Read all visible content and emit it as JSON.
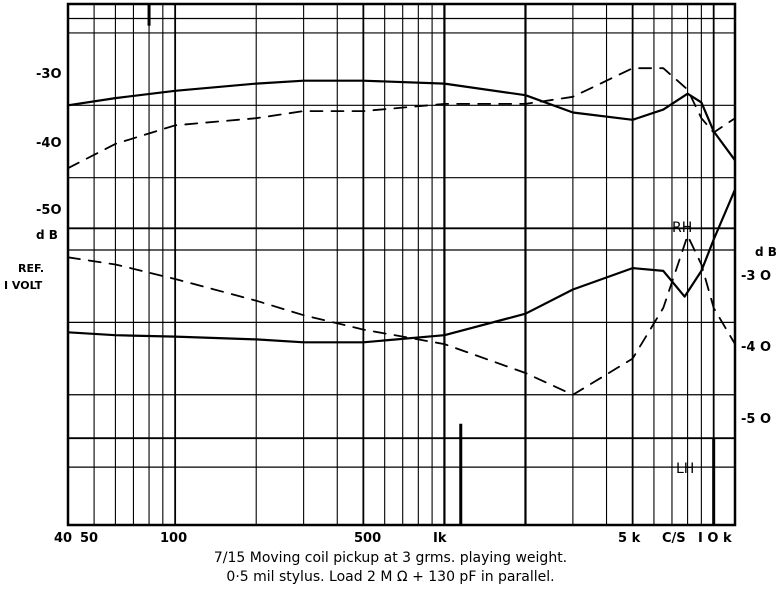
{
  "chart_data": {
    "type": "line",
    "title": "7/15  Moving coil pickup at 3 grms. playing weight.",
    "subtitle": "0·5 mil stylus.  Load 2 M Ω   + 130 pF in parallel.",
    "x_scale": "log",
    "xlim": [
      40,
      12000
    ],
    "x_ticks": [
      {
        "value": 40,
        "label": "40"
      },
      {
        "value": 50,
        "label": "50"
      },
      {
        "value": 100,
        "label": "100"
      },
      {
        "value": 500,
        "label": "500"
      },
      {
        "value": 1000,
        "label": "Ik"
      },
      {
        "value": 5000,
        "label": "5 k"
      },
      {
        "value": 10000,
        "label": "I O k"
      }
    ],
    "x_unit": "C/S",
    "left_axis": {
      "label_top": "d B",
      "label_ref": [
        "REF.",
        "I VOLT"
      ],
      "ticks": [
        "-3O",
        "-4O",
        "-5O"
      ],
      "ylim": [
        -28,
        -64
      ]
    },
    "right_axis": {
      "label_top": "d B",
      "ticks": [
        "-3 O",
        "-4 O",
        "-5 O"
      ],
      "ylim": [
        -58.5,
        -22
      ]
    },
    "annotations": [
      "RH",
      "LH"
    ],
    "series": [
      {
        "name": "RH",
        "axis": "left",
        "style": "solid",
        "x": [
          40,
          60,
          100,
          200,
          300,
          500,
          1000,
          2000,
          3000,
          5000,
          6500,
          8000,
          9000,
          10000,
          12000
        ],
        "y": [
          -35,
          -34.5,
          -34,
          -33.5,
          -33.3,
          -33.3,
          -33.5,
          -34.3,
          -35.5,
          -36,
          -35.3,
          -34.2,
          -34.8,
          -36.8,
          -38.8
        ]
      },
      {
        "name": "RH",
        "axis": "left",
        "style": "dashed",
        "x": [
          40,
          60,
          100,
          200,
          300,
          500,
          1000,
          2000,
          3000,
          5000,
          6500,
          8000,
          9000,
          10000,
          12000
        ],
        "y": [
          -45.5,
          -46,
          -47,
          -48.5,
          -49.5,
          -50.5,
          -51.5,
          -53.5,
          -55,
          -52.5,
          -49,
          -44,
          -46,
          -49,
          -51.5
        ]
      },
      {
        "name": "LH",
        "axis": "right",
        "style": "solid",
        "x": [
          40,
          60,
          100,
          200,
          300,
          500,
          1000,
          2000,
          3000,
          5000,
          6500,
          7800,
          9000,
          10000,
          12000
        ],
        "y": [
          -35.5,
          -35.3,
          -35.2,
          -35,
          -34.8,
          -34.8,
          -35.3,
          -36.8,
          -38.5,
          -40,
          -39.8,
          -38,
          -39.8,
          -42,
          -45.5
        ]
      },
      {
        "name": "LH",
        "axis": "right",
        "style": "dashed",
        "x": [
          40,
          60,
          100,
          200,
          300,
          500,
          1000,
          2000,
          3000,
          5000,
          6500,
          8000,
          9000,
          10000,
          12000
        ],
        "y": [
          -47,
          -48.7,
          -50,
          -50.5,
          -51,
          -51,
          -51.5,
          -51.5,
          -52,
          -54,
          -54,
          -52.5,
          -50.5,
          -49.5,
          -50.5
        ]
      }
    ]
  }
}
